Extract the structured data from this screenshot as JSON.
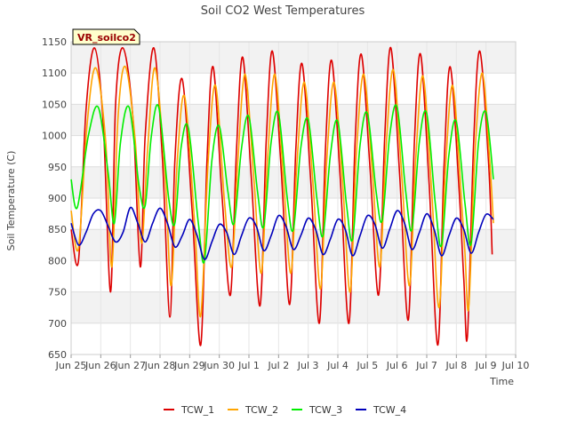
{
  "chart_data": {
    "type": "line",
    "title": "Soil CO2 West Temperatures",
    "xlabel": "Time",
    "ylabel": "Soil Temperature (C)",
    "annotation": "VR_soilco2",
    "xlim": [
      "2023-06-25",
      "2023-07-10"
    ],
    "ylim": [
      650,
      1150
    ],
    "yticks": [
      650,
      700,
      750,
      800,
      850,
      900,
      950,
      1000,
      1050,
      1100,
      1150
    ],
    "xticks": [
      {
        "date": "2023-06-25",
        "label": "Jun 25"
      },
      {
        "date": "2023-06-26",
        "label": "Jun 26"
      },
      {
        "date": "2023-06-27",
        "label": "Jun 27"
      },
      {
        "date": "2023-06-28",
        "label": "Jun 28"
      },
      {
        "date": "2023-06-29",
        "label": "Jun 29"
      },
      {
        "date": "2023-06-30",
        "label": "Jun 30"
      },
      {
        "date": "2023-07-01",
        "label": "Jul 1"
      },
      {
        "date": "2023-07-02",
        "label": "Jul 2"
      },
      {
        "date": "2023-07-03",
        "label": "Jul 3"
      },
      {
        "date": "2023-07-04",
        "label": "Jul 4"
      },
      {
        "date": "2023-07-05",
        "label": "Jul 5"
      },
      {
        "date": "2023-07-06",
        "label": "Jul 6"
      },
      {
        "date": "2023-07-07",
        "label": "Jul 7"
      },
      {
        "date": "2023-07-08",
        "label": "Jul 8"
      },
      {
        "date": "2023-07-09",
        "label": "Jul 9"
      },
      {
        "date": "2023-07-10",
        "label": "Jul 10"
      }
    ],
    "grid": true,
    "legend_position": "bottom",
    "series": [
      {
        "name": "TCW_1",
        "color": "#dd0000",
        "points": [
          [
            "2023-06-25 00:00",
            850
          ],
          [
            "2023-06-25 06:00",
            800
          ],
          [
            "2023-06-25 12:00",
            1040
          ],
          [
            "2023-06-25 19:00",
            1140
          ],
          [
            "2023-06-26 02:00",
            1020
          ],
          [
            "2023-06-26 08:00",
            750
          ],
          [
            "2023-06-26 12:00",
            1050
          ],
          [
            "2023-06-26 18:00",
            1140
          ],
          [
            "2023-06-27 02:00",
            1030
          ],
          [
            "2023-06-27 08:00",
            790
          ],
          [
            "2023-06-27 12:00",
            1000
          ],
          [
            "2023-06-27 19:00",
            1140
          ],
          [
            "2023-06-28 02:00",
            960
          ],
          [
            "2023-06-28 08:00",
            710
          ],
          [
            "2023-06-28 12:00",
            960
          ],
          [
            "2023-06-28 18:00",
            1090
          ],
          [
            "2023-06-29 02:00",
            880
          ],
          [
            "2023-06-29 09:00",
            665
          ],
          [
            "2023-06-29 14:00",
            960
          ],
          [
            "2023-06-29 19:00",
            1110
          ],
          [
            "2023-06-30 02:00",
            910
          ],
          [
            "2023-06-30 09:00",
            745
          ],
          [
            "2023-06-30 14:00",
            980
          ],
          [
            "2023-06-30 19:00",
            1125
          ],
          [
            "2023-07-01 02:00",
            930
          ],
          [
            "2023-07-01 09:00",
            728
          ],
          [
            "2023-07-01 14:00",
            990
          ],
          [
            "2023-07-01 19:00",
            1135
          ],
          [
            "2023-07-02 02:00",
            950
          ],
          [
            "2023-07-02 09:00",
            730
          ],
          [
            "2023-07-02 14:00",
            980
          ],
          [
            "2023-07-02 19:00",
            1115
          ],
          [
            "2023-07-03 02:00",
            930
          ],
          [
            "2023-07-03 09:00",
            700
          ],
          [
            "2023-07-03 14:00",
            980
          ],
          [
            "2023-07-03 19:00",
            1120
          ],
          [
            "2023-07-04 02:00",
            930
          ],
          [
            "2023-07-04 09:00",
            700
          ],
          [
            "2023-07-04 14:00",
            990
          ],
          [
            "2023-07-04 19:00",
            1130
          ],
          [
            "2023-07-05 02:00",
            950
          ],
          [
            "2023-07-05 09:00",
            745
          ],
          [
            "2023-07-05 14:00",
            1000
          ],
          [
            "2023-07-05 19:00",
            1140
          ],
          [
            "2023-07-06 02:00",
            940
          ],
          [
            "2023-07-06 09:00",
            705
          ],
          [
            "2023-07-06 14:00",
            990
          ],
          [
            "2023-07-06 19:00",
            1130
          ],
          [
            "2023-07-07 02:00",
            920
          ],
          [
            "2023-07-07 09:00",
            665
          ],
          [
            "2023-07-07 14:00",
            950
          ],
          [
            "2023-07-07 19:00",
            1110
          ],
          [
            "2023-07-08 02:00",
            920
          ],
          [
            "2023-07-08 06:00",
            770
          ],
          [
            "2023-07-08 09:00",
            680
          ],
          [
            "2023-07-08 14:00",
            990
          ],
          [
            "2023-07-08 19:00",
            1135
          ],
          [
            "2023-07-09 02:00",
            960
          ],
          [
            "2023-07-09 05:00",
            810
          ]
        ]
      },
      {
        "name": "TCW_2",
        "color": "#ffa500",
        "points": [
          [
            "2023-06-25 00:00",
            880
          ],
          [
            "2023-06-25 06:00",
            820
          ],
          [
            "2023-06-25 13:00",
            1020
          ],
          [
            "2023-06-25 20:00",
            1108
          ],
          [
            "2023-06-26 04:00",
            990
          ],
          [
            "2023-06-26 09:00",
            790
          ],
          [
            "2023-06-26 14:00",
            1030
          ],
          [
            "2023-06-26 20:00",
            1110
          ],
          [
            "2023-06-27 04:00",
            990
          ],
          [
            "2023-06-27 09:00",
            828
          ],
          [
            "2023-06-27 14:00",
            980
          ],
          [
            "2023-06-27 20:00",
            1108
          ],
          [
            "2023-06-28 04:00",
            940
          ],
          [
            "2023-06-28 09:00",
            760
          ],
          [
            "2023-06-28 14:00",
            960
          ],
          [
            "2023-06-28 20:00",
            1062
          ],
          [
            "2023-06-29 04:00",
            860
          ],
          [
            "2023-06-29 09:00",
            712
          ],
          [
            "2023-06-29 15:00",
            960
          ],
          [
            "2023-06-29 21:00",
            1080
          ],
          [
            "2023-06-30 04:00",
            900
          ],
          [
            "2023-06-30 10:00",
            790
          ],
          [
            "2023-06-30 15:00",
            960
          ],
          [
            "2023-06-30 21:00",
            1098
          ],
          [
            "2023-07-01 04:00",
            930
          ],
          [
            "2023-07-01 10:00",
            780
          ],
          [
            "2023-07-01 15:00",
            960
          ],
          [
            "2023-07-01 21:00",
            1098
          ],
          [
            "2023-07-02 04:00",
            930
          ],
          [
            "2023-07-02 10:00",
            780
          ],
          [
            "2023-07-02 15:00",
            960
          ],
          [
            "2023-07-02 21:00",
            1085
          ],
          [
            "2023-07-03 04:00",
            920
          ],
          [
            "2023-07-03 10:00",
            755
          ],
          [
            "2023-07-03 15:00",
            960
          ],
          [
            "2023-07-03 21:00",
            1085
          ],
          [
            "2023-07-04 04:00",
            920
          ],
          [
            "2023-07-04 10:00",
            750
          ],
          [
            "2023-07-04 15:00",
            970
          ],
          [
            "2023-07-04 21:00",
            1098
          ],
          [
            "2023-07-05 04:00",
            940
          ],
          [
            "2023-07-05 10:00",
            790
          ],
          [
            "2023-07-05 15:00",
            980
          ],
          [
            "2023-07-05 21:00",
            1105
          ],
          [
            "2023-07-06 04:00",
            930
          ],
          [
            "2023-07-06 10:00",
            760
          ],
          [
            "2023-07-06 15:00",
            960
          ],
          [
            "2023-07-06 21:00",
            1095
          ],
          [
            "2023-07-07 04:00",
            910
          ],
          [
            "2023-07-07 10:00",
            725
          ],
          [
            "2023-07-07 15:00",
            940
          ],
          [
            "2023-07-07 21:00",
            1080
          ],
          [
            "2023-07-08 04:00",
            900
          ],
          [
            "2023-07-08 07:00",
            810
          ],
          [
            "2023-07-08 10:00",
            725
          ],
          [
            "2023-07-08 15:00",
            970
          ],
          [
            "2023-07-08 21:00",
            1100
          ],
          [
            "2023-07-09 03:00",
            960
          ],
          [
            "2023-07-09 06:00",
            860
          ]
        ]
      },
      {
        "name": "TCW_3",
        "color": "#00ee00",
        "points": [
          [
            "2023-06-25 00:00",
            930
          ],
          [
            "2023-06-25 05:00",
            885
          ],
          [
            "2023-06-25 14:00",
            1000
          ],
          [
            "2023-06-25 22:00",
            1045
          ],
          [
            "2023-06-26 06:00",
            940
          ],
          [
            "2023-06-26 11:00",
            860
          ],
          [
            "2023-06-26 16:00",
            990
          ],
          [
            "2023-06-26 23:00",
            1045
          ],
          [
            "2023-06-27 07:00",
            920
          ],
          [
            "2023-06-27 12:00",
            888
          ],
          [
            "2023-06-27 17:00",
            1000
          ],
          [
            "2023-06-27 23:00",
            1045
          ],
          [
            "2023-06-28 07:00",
            900
          ],
          [
            "2023-06-28 12:00",
            860
          ],
          [
            "2023-06-28 17:00",
            980
          ],
          [
            "2023-06-28 23:00",
            1012
          ],
          [
            "2023-06-29 07:00",
            860
          ],
          [
            "2023-06-29 12:00",
            800
          ],
          [
            "2023-06-29 18:00",
            960
          ],
          [
            "2023-06-30 00:00",
            1015
          ],
          [
            "2023-06-30 07:00",
            910
          ],
          [
            "2023-06-30 12:00",
            860
          ],
          [
            "2023-06-30 18:00",
            980
          ],
          [
            "2023-07-01 00:00",
            1030
          ],
          [
            "2023-07-01 07:00",
            910
          ],
          [
            "2023-07-01 12:00",
            855
          ],
          [
            "2023-07-01 18:00",
            990
          ],
          [
            "2023-07-02 00:00",
            1035
          ],
          [
            "2023-07-02 07:00",
            900
          ],
          [
            "2023-07-02 12:00",
            850
          ],
          [
            "2023-07-02 18:00",
            980
          ],
          [
            "2023-07-03 00:00",
            1025
          ],
          [
            "2023-07-03 07:00",
            900
          ],
          [
            "2023-07-03 12:00",
            840
          ],
          [
            "2023-07-03 18:00",
            970
          ],
          [
            "2023-07-04 00:00",
            1022
          ],
          [
            "2023-07-04 07:00",
            890
          ],
          [
            "2023-07-04 12:00",
            835
          ],
          [
            "2023-07-04 18:00",
            985
          ],
          [
            "2023-07-05 00:00",
            1035
          ],
          [
            "2023-07-05 07:00",
            910
          ],
          [
            "2023-07-05 12:00",
            865
          ],
          [
            "2023-07-05 18:00",
            1000
          ],
          [
            "2023-07-06 00:00",
            1045
          ],
          [
            "2023-07-06 07:00",
            910
          ],
          [
            "2023-07-06 12:00",
            850
          ],
          [
            "2023-07-06 18:00",
            990
          ],
          [
            "2023-07-07 00:00",
            1035
          ],
          [
            "2023-07-07 07:00",
            890
          ],
          [
            "2023-07-07 12:00",
            825
          ],
          [
            "2023-07-07 18:00",
            970
          ],
          [
            "2023-07-08 00:00",
            1022
          ],
          [
            "2023-07-08 07:00",
            890
          ],
          [
            "2023-07-08 12:00",
            828
          ],
          [
            "2023-07-08 18:00",
            990
          ],
          [
            "2023-07-09 00:00",
            1037
          ],
          [
            "2023-07-09 06:00",
            930
          ]
        ]
      },
      {
        "name": "TCW_4",
        "color": "#0000bb",
        "points": [
          [
            "2023-06-25 00:00",
            860
          ],
          [
            "2023-06-25 06:00",
            825
          ],
          [
            "2023-06-25 12:00",
            845
          ],
          [
            "2023-06-25 18:00",
            875
          ],
          [
            "2023-06-26 00:00",
            880
          ],
          [
            "2023-06-26 06:00",
            855
          ],
          [
            "2023-06-26 12:00",
            830
          ],
          [
            "2023-06-26 18:00",
            845
          ],
          [
            "2023-06-27 00:00",
            885
          ],
          [
            "2023-06-27 06:00",
            860
          ],
          [
            "2023-06-27 12:00",
            830
          ],
          [
            "2023-06-27 18:00",
            860
          ],
          [
            "2023-06-28 00:00",
            884
          ],
          [
            "2023-06-28 06:00",
            860
          ],
          [
            "2023-06-28 12:00",
            822
          ],
          [
            "2023-06-28 18:00",
            840
          ],
          [
            "2023-06-29 00:00",
            866
          ],
          [
            "2023-06-29 06:00",
            840
          ],
          [
            "2023-06-29 12:00",
            802
          ],
          [
            "2023-06-29 18:00",
            830
          ],
          [
            "2023-06-30 00:00",
            858
          ],
          [
            "2023-06-30 06:00",
            845
          ],
          [
            "2023-06-30 12:00",
            810
          ],
          [
            "2023-06-30 18:00",
            840
          ],
          [
            "2023-07-01 00:00",
            868
          ],
          [
            "2023-07-01 06:00",
            855
          ],
          [
            "2023-07-01 12:00",
            816
          ],
          [
            "2023-07-01 18:00",
            840
          ],
          [
            "2023-07-02 00:00",
            872
          ],
          [
            "2023-07-02 06:00",
            855
          ],
          [
            "2023-07-02 12:00",
            818
          ],
          [
            "2023-07-02 18:00",
            840
          ],
          [
            "2023-07-03 00:00",
            868
          ],
          [
            "2023-07-03 06:00",
            850
          ],
          [
            "2023-07-03 12:00",
            810
          ],
          [
            "2023-07-03 18:00",
            835
          ],
          [
            "2023-07-04 00:00",
            866
          ],
          [
            "2023-07-04 06:00",
            850
          ],
          [
            "2023-07-04 12:00",
            808
          ],
          [
            "2023-07-04 18:00",
            840
          ],
          [
            "2023-07-05 00:00",
            872
          ],
          [
            "2023-07-05 06:00",
            858
          ],
          [
            "2023-07-05 12:00",
            820
          ],
          [
            "2023-07-05 18:00",
            850
          ],
          [
            "2023-07-06 00:00",
            880
          ],
          [
            "2023-07-06 06:00",
            860
          ],
          [
            "2023-07-06 12:00",
            818
          ],
          [
            "2023-07-06 18:00",
            845
          ],
          [
            "2023-07-07 00:00",
            875
          ],
          [
            "2023-07-07 06:00",
            850
          ],
          [
            "2023-07-07 12:00",
            808
          ],
          [
            "2023-07-07 18:00",
            840
          ],
          [
            "2023-07-08 00:00",
            868
          ],
          [
            "2023-07-08 06:00",
            850
          ],
          [
            "2023-07-08 12:00",
            812
          ],
          [
            "2023-07-08 18:00",
            845
          ],
          [
            "2023-07-09 00:00",
            874
          ],
          [
            "2023-07-09 06:00",
            866
          ]
        ]
      }
    ]
  }
}
